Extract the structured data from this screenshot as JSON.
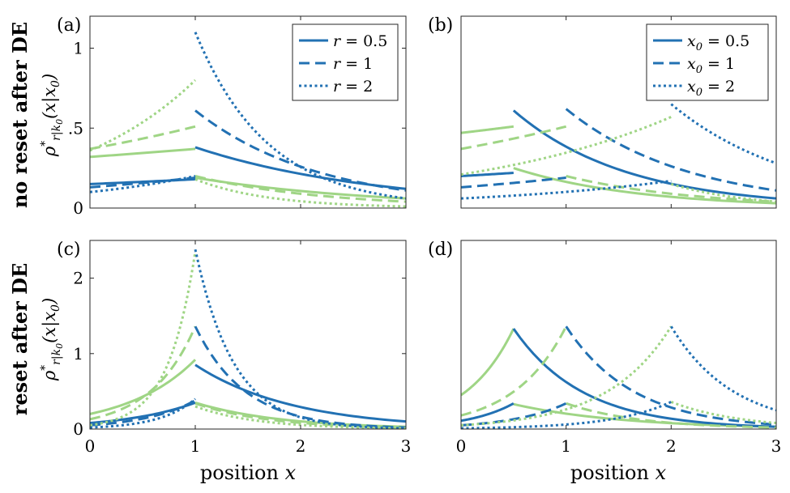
{
  "colors": {
    "blue": "#2271b3",
    "green": "#9fd585"
  },
  "row_labels": [
    "no reset after DE",
    "reset after DE"
  ],
  "ylabel": "ρ*r|k0(x|x0)",
  "ylabel_parts": {
    "rho": "ρ",
    "star": "*",
    "sub": "r|k",
    "subsub": "0",
    "arg": "(x|x",
    "argsub": "0",
    "close": ")"
  },
  "xlabel": {
    "text": "position",
    "var": "x"
  },
  "chart_data": [
    {
      "type": "line",
      "panel": "(a)",
      "xlim": [
        0,
        3
      ],
      "ylim": [
        0,
        1.2
      ],
      "xticks": [
        0,
        1,
        2,
        3
      ],
      "xtick_labels": [
        "0",
        "1",
        "2",
        "3"
      ],
      "show_xtick_labels": false,
      "yticks": [
        0,
        0.5,
        1
      ],
      "ytick_labels": [
        "0",
        ".5",
        "1"
      ],
      "legend": {
        "entries": [
          {
            "label": "r = 0.5",
            "style": "solid"
          },
          {
            "label": "r = 1",
            "style": "dashed"
          },
          {
            "label": "r = 2",
            "style": "dotted"
          }
        ]
      },
      "series": [
        {
          "name": "r = 0.5 green",
          "color": "green",
          "style": "solid",
          "left": {
            "x": [
              0,
              1
            ],
            "y": [
              0.32,
              0.37
            ]
          },
          "right_upper": null,
          "right": {
            "x": [
              1,
              3
            ],
            "y": [
              0.19,
              0.06
            ]
          }
        },
        {
          "name": "r = 0.5 blue",
          "color": "blue",
          "style": "solid",
          "left": {
            "x": [
              0,
              1
            ],
            "y": [
              0.15,
              0.18
            ]
          },
          "right": {
            "x": [
              1,
              3
            ],
            "y": [
              0.38,
              0.12
            ]
          }
        },
        {
          "name": "r = 1 green",
          "color": "green",
          "style": "dashed",
          "left": {
            "x": [
              0,
              1
            ],
            "y": [
              0.37,
              0.51
            ]
          },
          "right": {
            "x": [
              1,
              3
            ],
            "y": [
              0.2,
              0.04
            ]
          }
        },
        {
          "name": "r = 1 blue",
          "color": "blue",
          "style": "dashed",
          "left": {
            "x": [
              0,
              1
            ],
            "y": [
              0.13,
              0.19
            ]
          },
          "right": {
            "x": [
              1,
              3
            ],
            "y": [
              0.61,
              0.11
            ]
          }
        },
        {
          "name": "r = 2 green",
          "color": "green",
          "style": "dotted",
          "left": {
            "x": [
              0,
              1
            ],
            "y": [
              0.36,
              0.8
            ]
          },
          "right": {
            "x": [
              1,
              3
            ],
            "y": [
              0.18,
              0.01
            ]
          }
        },
        {
          "name": "r = 2 blue",
          "color": "blue",
          "style": "dotted",
          "left": {
            "x": [
              0,
              1
            ],
            "y": [
              0.1,
              0.2
            ]
          },
          "right": {
            "x": [
              1,
              3
            ],
            "y": [
              1.1,
              0.06
            ]
          }
        }
      ]
    },
    {
      "type": "line",
      "panel": "(b)",
      "xlim": [
        0,
        3
      ],
      "ylim": [
        0,
        1.2
      ],
      "xticks": [
        0,
        1,
        2,
        3
      ],
      "xtick_labels": [
        "0",
        "1",
        "2",
        "3"
      ],
      "show_xtick_labels": false,
      "yticks": [],
      "ytick_labels": [],
      "legend": {
        "entries": [
          {
            "label": "x0 = 0.5",
            "style": "solid"
          },
          {
            "label": "x0 = 1",
            "style": "dashed"
          },
          {
            "label": "x0 = 2",
            "style": "dotted"
          }
        ]
      },
      "series": [
        {
          "name": "x0 = 0.5 green",
          "color": "green",
          "style": "solid",
          "left": {
            "x": [
              0,
              0.5
            ],
            "y": [
              0.47,
              0.51
            ]
          },
          "right": {
            "x": [
              0.5,
              3
            ],
            "y": [
              0.25,
              0.03
            ]
          }
        },
        {
          "name": "x0 = 0.5 blue",
          "color": "blue",
          "style": "solid",
          "left": {
            "x": [
              0,
              0.5
            ],
            "y": [
              0.2,
              0.22
            ]
          },
          "right": {
            "x": [
              0.5,
              3
            ],
            "y": [
              0.61,
              0.06
            ]
          }
        },
        {
          "name": "x0 = 1 green",
          "color": "green",
          "style": "dashed",
          "left": {
            "x": [
              0,
              1
            ],
            "y": [
              0.37,
              0.51
            ]
          },
          "right": {
            "x": [
              1,
              3
            ],
            "y": [
              0.2,
              0.04
            ]
          }
        },
        {
          "name": "x0 = 1 blue",
          "color": "blue",
          "style": "dashed",
          "left": {
            "x": [
              0,
              1
            ],
            "y": [
              0.13,
              0.19
            ]
          },
          "right": {
            "x": [
              1,
              3
            ],
            "y": [
              0.62,
              0.11
            ]
          }
        },
        {
          "name": "x0 = 2 green",
          "color": "green",
          "style": "dotted",
          "left": {
            "x": [
              0,
              2
            ],
            "y": [
              0.21,
              0.57
            ]
          },
          "right": {
            "x": [
              2,
              3
            ],
            "y": [
              0.15,
              0.04
            ]
          }
        },
        {
          "name": "x0 = 2 blue",
          "color": "blue",
          "style": "dotted",
          "left": {
            "x": [
              0,
              2
            ],
            "y": [
              0.06,
              0.17
            ]
          },
          "right": {
            "x": [
              2,
              3
            ],
            "y": [
              0.65,
              0.28
            ]
          }
        }
      ]
    },
    {
      "type": "line",
      "panel": "(c)",
      "xlim": [
        0,
        3
      ],
      "ylim": [
        0,
        2.5
      ],
      "xticks": [
        0,
        1,
        2,
        3
      ],
      "xtick_labels": [
        "0",
        "1",
        "2",
        "3"
      ],
      "show_xtick_labels": true,
      "yticks": [
        0,
        1,
        2
      ],
      "ytick_labels": [
        "0",
        "1",
        "2"
      ],
      "legend": null,
      "series": [
        {
          "name": "r = 0.5 green",
          "color": "green",
          "style": "solid",
          "left": {
            "x": [
              0,
              1
            ],
            "y": [
              0.2,
              0.92
            ]
          },
          "right": {
            "x": [
              1,
              3
            ],
            "y": [
              0.35,
              0.03
            ]
          }
        },
        {
          "name": "r = 0.5 blue",
          "color": "blue",
          "style": "solid",
          "left": {
            "x": [
              0,
              1
            ],
            "y": [
              0.08,
              0.35
            ]
          },
          "right": {
            "x": [
              1,
              3
            ],
            "y": [
              0.85,
              0.1
            ]
          }
        },
        {
          "name": "r = 1 green",
          "color": "green",
          "style": "dashed",
          "left": {
            "x": [
              0,
              1
            ],
            "y": [
              0.13,
              1.36
            ]
          },
          "right": {
            "x": [
              1,
              3
            ],
            "y": [
              0.34,
              0.02
            ]
          }
        },
        {
          "name": "r = 1 blue",
          "color": "blue",
          "style": "dashed",
          "left": {
            "x": [
              0,
              1
            ],
            "y": [
              0.05,
              0.38
            ]
          },
          "right": {
            "x": [
              1,
              3
            ],
            "y": [
              1.36,
              0.02
            ]
          }
        },
        {
          "name": "r = 2 green",
          "color": "green",
          "style": "dotted",
          "left": {
            "x": [
              0,
              1
            ],
            "y": [
              0.05,
              2.35
            ]
          },
          "right": {
            "x": [
              1,
              3
            ],
            "y": [
              0.3,
              0.01
            ]
          }
        },
        {
          "name": "r = 2 blue",
          "color": "blue",
          "style": "dotted",
          "left": {
            "x": [
              0,
              1
            ],
            "y": [
              0.02,
              0.4
            ]
          },
          "right": {
            "x": [
              1,
              3
            ],
            "y": [
              2.38,
              0.01
            ]
          }
        }
      ]
    },
    {
      "type": "line",
      "panel": "(d)",
      "xlim": [
        0,
        3
      ],
      "ylim": [
        0,
        2.5
      ],
      "xticks": [
        0,
        1,
        2,
        3
      ],
      "xtick_labels": [
        "0",
        "1",
        "2",
        "3"
      ],
      "show_xtick_labels": true,
      "yticks": [],
      "ytick_labels": [],
      "legend": null,
      "series": [
        {
          "name": "x0 = 0.5 green",
          "color": "green",
          "style": "solid",
          "left": {
            "x": [
              0,
              0.5
            ],
            "y": [
              0.45,
              1.33
            ]
          },
          "right": {
            "x": [
              0.5,
              3
            ],
            "y": [
              0.33,
              0.03
            ]
          }
        },
        {
          "name": "x0 = 0.5 blue",
          "color": "blue",
          "style": "solid",
          "left": {
            "x": [
              0,
              0.5
            ],
            "y": [
              0.11,
              0.34
            ]
          },
          "right": {
            "x": [
              0.5,
              3
            ],
            "y": [
              1.33,
              0.03
            ]
          }
        },
        {
          "name": "x0 = 1 green",
          "color": "green",
          "style": "dashed",
          "left": {
            "x": [
              0,
              1
            ],
            "y": [
              0.18,
              1.36
            ]
          },
          "right": {
            "x": [
              1,
              3
            ],
            "y": [
              0.34,
              0.02
            ]
          }
        },
        {
          "name": "x0 = 1 blue",
          "color": "blue",
          "style": "dashed",
          "left": {
            "x": [
              0,
              1
            ],
            "y": [
              0.05,
              0.34
            ]
          },
          "right": {
            "x": [
              1,
              3
            ],
            "y": [
              1.36,
              0.06
            ]
          }
        },
        {
          "name": "x0 = 2 green",
          "color": "green",
          "style": "dotted",
          "left": {
            "x": [
              0,
              2
            ],
            "y": [
              0.05,
              1.36
            ]
          },
          "right": {
            "x": [
              2,
              3
            ],
            "y": [
              0.36,
              0.08
            ]
          }
        },
        {
          "name": "x0 = 2 blue",
          "color": "blue",
          "style": "dotted",
          "left": {
            "x": [
              0,
              2
            ],
            "y": [
              0.01,
              0.36
            ]
          },
          "right": {
            "x": [
              2,
              3
            ],
            "y": [
              1.36,
              0.25
            ]
          }
        }
      ]
    }
  ]
}
